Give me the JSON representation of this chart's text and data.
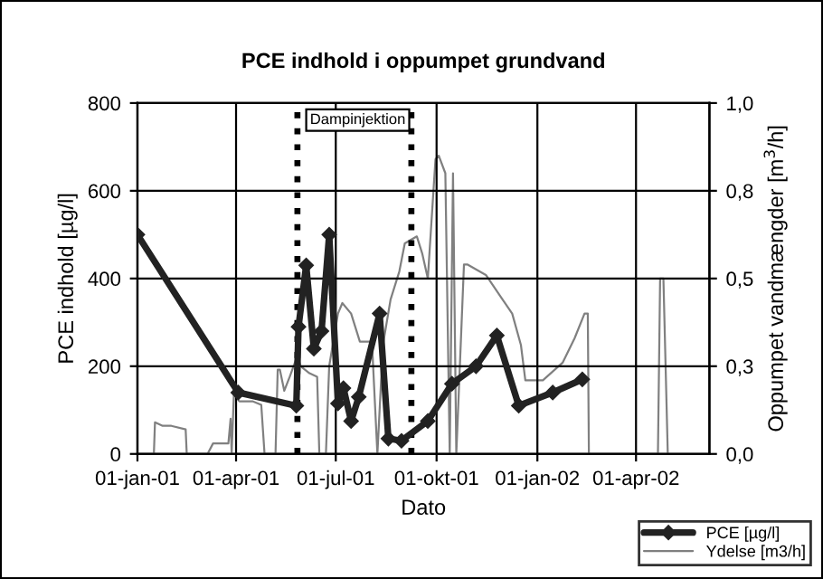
{
  "chart_data": {
    "type": "line",
    "title": "PCE indhold i oppumpet grundvand",
    "xlabel": "Dato",
    "ylabel": "PCE indhold [µg/l]",
    "y2label": "Oppumpet vandmængder [m$^{3}$/h]",
    "xlim": [
      "2001-01-01",
      "2002-06-07"
    ],
    "xticks": [
      {
        "value": "2001-01-01",
        "label": "01-jan-01"
      },
      {
        "value": "2001-04-01",
        "label": "01-apr-01"
      },
      {
        "value": "2001-07-01",
        "label": "01-jul-01"
      },
      {
        "value": "2001-10-01",
        "label": "01-okt-01"
      },
      {
        "value": "2002-01-01",
        "label": "01-jan-02"
      },
      {
        "value": "2002-04-01",
        "label": "01-apr-02"
      }
    ],
    "ylim": [
      0,
      800
    ],
    "yticks": [
      0,
      200,
      400,
      600,
      800
    ],
    "y2lim": [
      0,
      1
    ],
    "y2ticks": [
      {
        "value": 0,
        "label": "0,0"
      },
      {
        "value": 0.25,
        "label": "0,3"
      },
      {
        "value": 0.5,
        "label": "0,5"
      },
      {
        "value": 0.75,
        "label": "0,8"
      },
      {
        "value": 1,
        "label": "1,0"
      }
    ],
    "grid": true,
    "legend": "bottom right",
    "ref_lines": [
      {
        "axis": "x",
        "value": "2001-05-27",
        "label": "Dampinjektion",
        "color": "#000000",
        "line_style": "dotted"
      },
      {
        "axis": "x",
        "value": "2001-09-08",
        "color": "#000000",
        "line_style": "dotted"
      }
    ],
    "series": [
      {
        "name": "PCE [µg/l]",
        "color": "#222222",
        "marker": "diamond",
        "line_style": "solid",
        "x": [
          "2001-01-01",
          "2001-04-03",
          "2001-05-26",
          "2001-05-28",
          "2001-06-04",
          "2001-06-11",
          "2001-06-18",
          "2001-06-25",
          "2001-07-03",
          "2001-07-08",
          "2001-07-15",
          "2001-07-22",
          "2001-08-10",
          "2001-08-18",
          "2001-08-30",
          "2001-09-23",
          "2001-10-15",
          "2001-11-06",
          "2001-11-25",
          "2001-12-15",
          "2002-01-15",
          "2002-02-11"
        ],
        "values": [
          500,
          140,
          110,
          290,
          430,
          240,
          280,
          500,
          115,
          150,
          75,
          130,
          320,
          35,
          30,
          75,
          160,
          200,
          270,
          110,
          140,
          170
        ]
      },
      {
        "name": "Ydelse [m3/h]",
        "color": "#808080",
        "marker": "none",
        "line_style": "solid",
        "axis": "y2",
        "x": [
          "2001-01-01",
          "2001-01-16",
          "2001-01-17",
          "2001-01-24",
          "2001-02-01",
          "2001-02-14",
          "2001-02-15",
          "2001-03-06",
          "2001-03-11",
          "2001-03-25",
          "2001-03-27",
          "2001-03-28",
          "2001-03-30",
          "2001-04-04",
          "2001-04-16",
          "2001-04-24",
          "2001-04-27",
          "2001-05-07",
          "2001-05-09",
          "2001-05-11",
          "2001-05-15",
          "2001-05-20",
          "2001-05-27",
          "2001-05-30",
          "2001-06-07",
          "2001-06-14",
          "2001-06-16",
          "2001-06-22",
          "2001-06-25",
          "2001-07-03",
          "2001-07-07",
          "2001-07-15",
          "2001-07-23",
          "2001-08-03",
          "2001-08-08",
          "2001-08-13",
          "2001-08-20",
          "2001-08-28",
          "2001-09-02",
          "2001-09-13",
          "2001-09-18",
          "2001-09-23",
          "2001-09-30",
          "2001-10-03",
          "2001-10-09",
          "2001-10-13",
          "2001-10-16",
          "2001-10-19",
          "2001-10-26",
          "2001-10-29",
          "2001-11-15",
          "2001-11-28",
          "2001-12-09",
          "2001-12-17",
          "2001-12-21",
          "2002-01-06",
          "2002-01-24",
          "2002-02-04",
          "2002-02-13",
          "2002-02-16",
          "2002-02-17",
          "2002-04-21",
          "2002-04-23",
          "2002-04-26",
          "2002-04-30"
        ],
        "values": [
          0,
          0,
          0.09,
          0.08,
          0.08,
          0.07,
          0,
          0,
          0.03,
          0.03,
          0.1,
          0,
          0.17,
          0.15,
          0.15,
          0.14,
          0,
          0,
          0.24,
          0.24,
          0.18,
          0.22,
          0.28,
          0.25,
          0.23,
          0.22,
          0,
          0,
          0.25,
          0.4,
          0.43,
          0.4,
          0.32,
          0.32,
          0,
          0.31,
          0.44,
          0.52,
          0.6,
          0.62,
          0.57,
          0.5,
          0.84,
          0.85,
          0.8,
          0,
          0.8,
          0,
          0.54,
          0.54,
          0.51,
          0.45,
          0.4,
          0.31,
          0.21,
          0.21,
          0.26,
          0.33,
          0.4,
          0.4,
          0,
          0,
          0.5,
          0.5,
          0
        ]
      }
    ]
  }
}
